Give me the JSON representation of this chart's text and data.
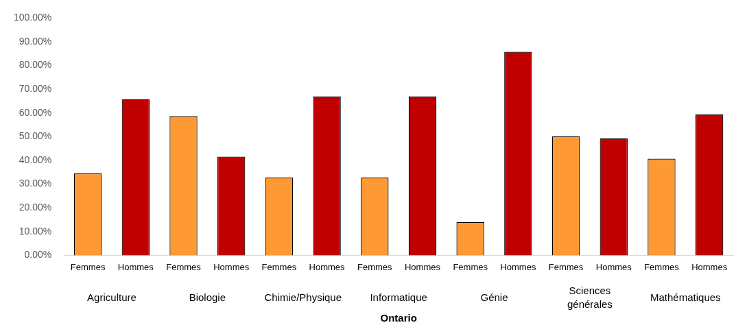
{
  "chart_data": {
    "type": "bar",
    "xlabel": "Ontario",
    "categories": [
      "Femmes",
      "Hommes",
      "Femmes",
      "Hommes",
      "Femmes",
      "Hommes",
      "Femmes",
      "Hommes",
      "Femmes",
      "Hommes",
      "Femmes",
      "Hommes",
      "Femmes",
      "Hommes"
    ],
    "values": [
      34.5,
      65.8,
      58.7,
      41.6,
      32.8,
      67.0,
      32.8,
      67.0,
      14.0,
      85.8,
      50.1,
      49.3,
      40.7,
      59.5
    ],
    "colors": [
      "#ff9933",
      "#c00000",
      "#ff9933",
      "#c00000",
      "#ff9933",
      "#c00000",
      "#ff9933",
      "#c00000",
      "#ff9933",
      "#c00000",
      "#ff9933",
      "#c00000",
      "#ff9933",
      "#c00000"
    ],
    "ylim": [
      0,
      100
    ],
    "yticks": [
      {
        "value": 0,
        "label": "0.00%"
      },
      {
        "value": 10,
        "label": "10.00%"
      },
      {
        "value": 20,
        "label": "20.00%"
      },
      {
        "value": 30,
        "label": "30.00%"
      },
      {
        "value": 40,
        "label": "40.00%"
      },
      {
        "value": 50,
        "label": "50.00%"
      },
      {
        "value": 60,
        "label": "60.00%"
      },
      {
        "value": 70,
        "label": "70.00%"
      },
      {
        "value": 80,
        "label": "80.00%"
      },
      {
        "value": 90,
        "label": "90.00%"
      },
      {
        "value": 100,
        "label": "100.00%"
      }
    ],
    "annotations": [
      "Agriculture",
      "Biologie",
      "Chimie/Physique",
      "Informatique",
      "Génie",
      "Sciences\ngénérales",
      "Mathématiques"
    ],
    "grid": false,
    "legend": false
  }
}
